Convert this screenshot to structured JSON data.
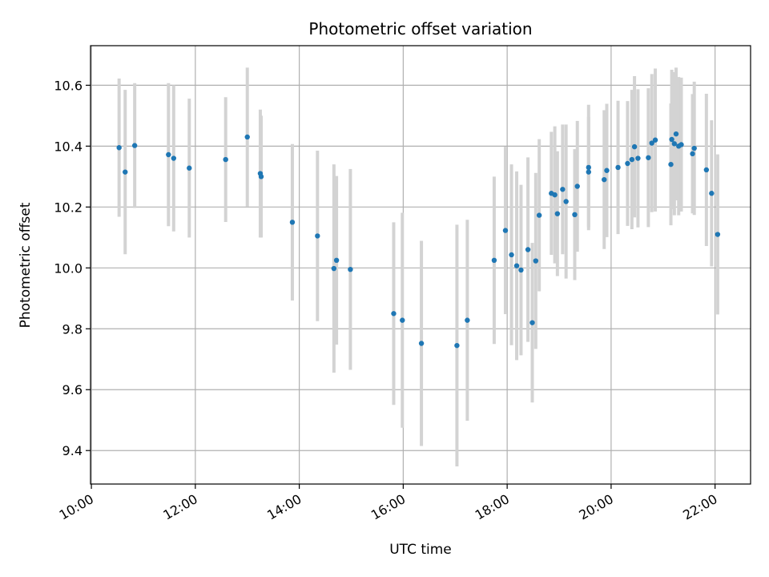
{
  "chart_data": {
    "type": "scatter",
    "title": "Photometric offset variation",
    "xlabel": "UTC time",
    "ylabel": "Photometric offset",
    "x_ticks": [
      "10:00",
      "12:00",
      "14:00",
      "16:00",
      "18:00",
      "20:00",
      "22:00"
    ],
    "y_ticks": [
      "9.4",
      "9.6",
      "9.8",
      "10.0",
      "10.2",
      "10.4",
      "10.6"
    ],
    "xlim": [
      "09:59",
      "22:41"
    ],
    "ylim": [
      9.29,
      10.73
    ],
    "grid": true,
    "point_color": "#1f77b4",
    "errorbar_color": "#d3d3d3",
    "series": [
      {
        "x": [
          "10:32",
          "10:39",
          "10:50",
          "11:29",
          "11:35",
          "11:53",
          "12:35",
          "13:00",
          "13:15",
          "13:16",
          "13:52",
          "14:21",
          "14:40",
          "14:43",
          "14:59",
          "15:49",
          "15:59",
          "16:21",
          "17:02",
          "17:14",
          "17:45",
          "17:58",
          "18:05",
          "18:11",
          "18:16",
          "18:24",
          "18:29",
          "18:33",
          "18:37",
          "18:51",
          "18:55",
          "18:58",
          "19:04",
          "19:08",
          "19:18",
          "19:21",
          "19:34",
          "19:34",
          "19:52",
          "19:55",
          "20:08",
          "20:19",
          "20:24",
          "20:27",
          "20:31",
          "20:43",
          "20:47",
          "20:51",
          "21:09",
          "21:10",
          "21:13",
          "21:15",
          "21:18",
          "21:21",
          "21:34",
          "21:36",
          "21:50",
          "21:56",
          "22:03"
        ],
        "y": [
          10.395,
          10.315,
          10.402,
          10.372,
          10.36,
          10.328,
          10.356,
          10.43,
          10.31,
          10.3,
          10.15,
          10.105,
          9.998,
          10.025,
          9.995,
          9.85,
          9.828,
          9.752,
          9.745,
          9.828,
          10.025,
          10.123,
          10.043,
          10.007,
          9.993,
          10.06,
          9.82,
          10.023,
          10.173,
          10.245,
          10.24,
          10.178,
          10.258,
          10.218,
          10.175,
          10.268,
          10.315,
          10.33,
          10.29,
          10.32,
          10.33,
          10.343,
          10.356,
          10.398,
          10.36,
          10.362,
          10.41,
          10.42,
          10.34,
          10.422,
          10.408,
          10.44,
          10.4,
          10.405,
          10.375,
          10.393,
          10.322,
          10.245,
          10.11
        ],
        "yerr": [
          0.227,
          0.27,
          0.205,
          0.235,
          0.24,
          0.228,
          0.205,
          0.228,
          0.21,
          0.2,
          0.257,
          0.28,
          0.342,
          0.277,
          0.33,
          0.3,
          0.353,
          0.337,
          0.397,
          0.33,
          0.275,
          0.275,
          0.297,
          0.31,
          0.28,
          0.303,
          0.262,
          0.289,
          0.25,
          0.202,
          0.225,
          0.205,
          0.213,
          0.253,
          0.215,
          0.215,
          0.181,
          0.206,
          0.228,
          0.219,
          0.219,
          0.205,
          0.229,
          0.232,
          0.227,
          0.228,
          0.227,
          0.235,
          0.2,
          0.229,
          0.235,
          0.218,
          0.227,
          0.22,
          0.196,
          0.219,
          0.25,
          0.24,
          0.263
        ]
      }
    ]
  }
}
